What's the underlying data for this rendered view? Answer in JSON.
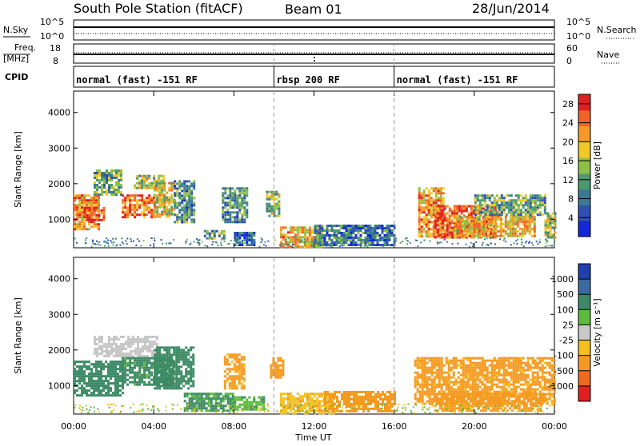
{
  "header": {
    "station": "South Pole Station (fitACF)",
    "beam": "Beam 01",
    "date": "28/Jun/2014"
  },
  "aux_panels": {
    "nsky_label": "N.Sky",
    "nsky_ticks": [
      "10^5",
      "10^0"
    ],
    "nsearch_label": "N.Search",
    "nsearch_ticks": [
      "10^5",
      "10^0"
    ],
    "freq_label": "Freq.",
    "freq_unit": "[MHz]",
    "freq_ticks": [
      "18",
      "8"
    ],
    "nave_label": "Nave",
    "nave_ticks": [
      "60",
      "0"
    ],
    "cpid_label": "CPID",
    "cpid_segments": [
      {
        "label": "normal (fast) -151 RF",
        "start": 0,
        "end": 10
      },
      {
        "label": "rbsp 200 RF",
        "start": 10,
        "end": 16
      },
      {
        "label": "normal (fast) -151 RF",
        "start": 16,
        "end": 24
      }
    ]
  },
  "colors": {
    "power_scale": [
      "#1428d8",
      "#2f50b4",
      "#3b7a92",
      "#4c9a6e",
      "#8fc046",
      "#f0c828",
      "#f59828",
      "#f06428",
      "#e02020"
    ],
    "velocity_scale": [
      "#2040b0",
      "#3b6aa0",
      "#3c8a64",
      "#5cbb3c",
      "#c8c8c8",
      "#f5c020",
      "#f59a20",
      "#ee6820",
      "#e02020"
    ]
  },
  "chart_data": [
    {
      "type": "heatmap",
      "name": "power",
      "ylabel": "Slant Range [km]",
      "ylim": [
        200,
        4600
      ],
      "yticks": [
        1000,
        2000,
        3000,
        4000
      ],
      "xlim": [
        0,
        24
      ],
      "xticks": [
        "00:00",
        "04:00",
        "08:00",
        "12:00",
        "16:00",
        "20:00",
        "00:00"
      ],
      "colorbar": {
        "label": "Power [dB]",
        "ticks": [
          "28",
          "24",
          "20",
          "16",
          "12",
          "8",
          "4"
        ],
        "range": [
          0,
          30
        ]
      },
      "blobs": [
        {
          "t": [
            0.0,
            1.2
          ],
          "r": [
            700,
            1700
          ],
          "value": 22
        },
        {
          "t": [
            0.5,
            1.5
          ],
          "r": [
            950,
            1350
          ],
          "value": 28
        },
        {
          "t": [
            1.0,
            2.4
          ],
          "r": [
            1700,
            2400
          ],
          "value": 12
        },
        {
          "t": [
            2.4,
            4.0
          ],
          "r": [
            1050,
            1700
          ],
          "value": 24
        },
        {
          "t": [
            3.0,
            4.5
          ],
          "r": [
            1850,
            2250
          ],
          "value": 16
        },
        {
          "t": [
            4.0,
            5.0
          ],
          "r": [
            1100,
            2050
          ],
          "value": 18
        },
        {
          "t": [
            5.0,
            6.0
          ],
          "r": [
            950,
            2100
          ],
          "value": 10
        },
        {
          "t": [
            6.5,
            7.5
          ],
          "r": [
            450,
            700
          ],
          "value": 12
        },
        {
          "t": [
            7.4,
            8.6
          ],
          "r": [
            900,
            1900
          ],
          "value": 10
        },
        {
          "t": [
            8.0,
            9.0
          ],
          "r": [
            300,
            650
          ],
          "value": 6
        },
        {
          "t": [
            9.6,
            10.3
          ],
          "r": [
            1100,
            1800
          ],
          "value": 14
        },
        {
          "t": [
            10.3,
            12.4
          ],
          "r": [
            250,
            800
          ],
          "value": 20
        },
        {
          "t": [
            12.0,
            16.0
          ],
          "r": [
            250,
            850
          ],
          "value": 8
        },
        {
          "t": [
            17.2,
            18.5
          ],
          "r": [
            500,
            1900
          ],
          "value": 22
        },
        {
          "t": [
            18.0,
            21.0
          ],
          "r": [
            500,
            1400
          ],
          "value": 26
        },
        {
          "t": [
            19.0,
            23.0
          ],
          "r": [
            500,
            1100
          ],
          "value": 20
        },
        {
          "t": [
            20.0,
            23.5
          ],
          "r": [
            1100,
            1700
          ],
          "value": 12
        },
        {
          "t": [
            23.5,
            24.0
          ],
          "r": [
            500,
            1200
          ],
          "value": 16
        }
      ]
    },
    {
      "type": "heatmap",
      "name": "velocity",
      "ylabel": "Slant Range [km]",
      "ylim": [
        200,
        4600
      ],
      "yticks": [
        1000,
        2000,
        3000,
        4000
      ],
      "xlim": [
        0,
        24
      ],
      "xticks": [
        "00:00",
        "04:00",
        "08:00",
        "12:00",
        "16:00",
        "20:00",
        "00:00"
      ],
      "xlabel": "Time UT",
      "colorbar": {
        "label": "Velocity [m s⁻¹]",
        "ticks": [
          "1000",
          "500",
          "100",
          "25",
          "-25",
          "-100",
          "-500",
          "-1000"
        ]
      },
      "blobs": [
        {
          "t": [
            0.0,
            2.5
          ],
          "r": [
            700,
            1700
          ],
          "value": 200
        },
        {
          "t": [
            1.0,
            4.2
          ],
          "r": [
            1800,
            2400
          ],
          "value": 10
        },
        {
          "t": [
            2.4,
            5.0
          ],
          "r": [
            1000,
            1800
          ],
          "value": 150
        },
        {
          "t": [
            4.0,
            6.0
          ],
          "r": [
            900,
            2100
          ],
          "value": 300
        },
        {
          "t": [
            5.5,
            8.0
          ],
          "r": [
            300,
            800
          ],
          "value": 120
        },
        {
          "t": [
            7.5,
            8.5
          ],
          "r": [
            900,
            1900
          ],
          "value": -150
        },
        {
          "t": [
            8.0,
            9.5
          ],
          "r": [
            300,
            700
          ],
          "value": 80
        },
        {
          "t": [
            9.8,
            10.4
          ],
          "r": [
            1200,
            1800
          ],
          "value": -300
        },
        {
          "t": [
            10.3,
            13.0
          ],
          "r": [
            250,
            800
          ],
          "value": -80
        },
        {
          "t": [
            12.5,
            16.0
          ],
          "r": [
            250,
            850
          ],
          "value": -200
        },
        {
          "t": [
            17.0,
            24.0
          ],
          "r": [
            500,
            1800
          ],
          "value": -150
        },
        {
          "t": [
            18.0,
            23.5
          ],
          "r": [
            300,
            800
          ],
          "value": -250
        }
      ]
    }
  ],
  "annotations": {
    "dashed_times": [
      10,
      16
    ]
  }
}
